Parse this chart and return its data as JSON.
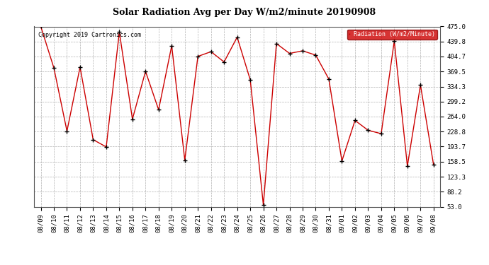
{
  "title": "Solar Radiation Avg per Day W/m2/minute 20190908",
  "copyright": "Copyright 2019 Cartronics.com",
  "legend_label": "Radiation (W/m2/Minute)",
  "legend_bg": "#cc0000",
  "legend_text_color": "#ffffff",
  "line_color": "#cc0000",
  "marker_color": "#000000",
  "bg_color": "#ffffff",
  "plot_bg_color": "#ffffff",
  "grid_color": "#b0b0b0",
  "dates": [
    "08/09",
    "08/10",
    "08/11",
    "08/12",
    "08/13",
    "08/14",
    "08/15",
    "08/16",
    "08/17",
    "08/18",
    "08/19",
    "08/20",
    "08/21",
    "08/22",
    "08/23",
    "08/24",
    "08/25",
    "08/26",
    "08/27",
    "08/28",
    "08/29",
    "08/30",
    "08/31",
    "09/01",
    "09/02",
    "09/03",
    "09/04",
    "09/05",
    "09/06",
    "09/07",
    "09/08"
  ],
  "values": [
    475.0,
    378.0,
    230.0,
    380.0,
    210.0,
    193.0,
    462.0,
    258.0,
    370.0,
    280.0,
    430.0,
    162.0,
    405.0,
    416.0,
    392.0,
    450.0,
    350.0,
    57.0,
    435.0,
    412.0,
    418.0,
    408.0,
    352.0,
    160.0,
    255.0,
    232.0,
    224.0,
    441.0,
    148.0,
    338.0,
    151.0
  ],
  "ylim_min": 53.0,
  "ylim_max": 475.0,
  "yticks": [
    475.0,
    439.8,
    404.7,
    369.5,
    334.3,
    299.2,
    264.0,
    228.8,
    193.7,
    158.5,
    123.3,
    88.2,
    53.0
  ],
  "title_fontsize": 9,
  "tick_fontsize": 6.5,
  "copyright_fontsize": 6
}
